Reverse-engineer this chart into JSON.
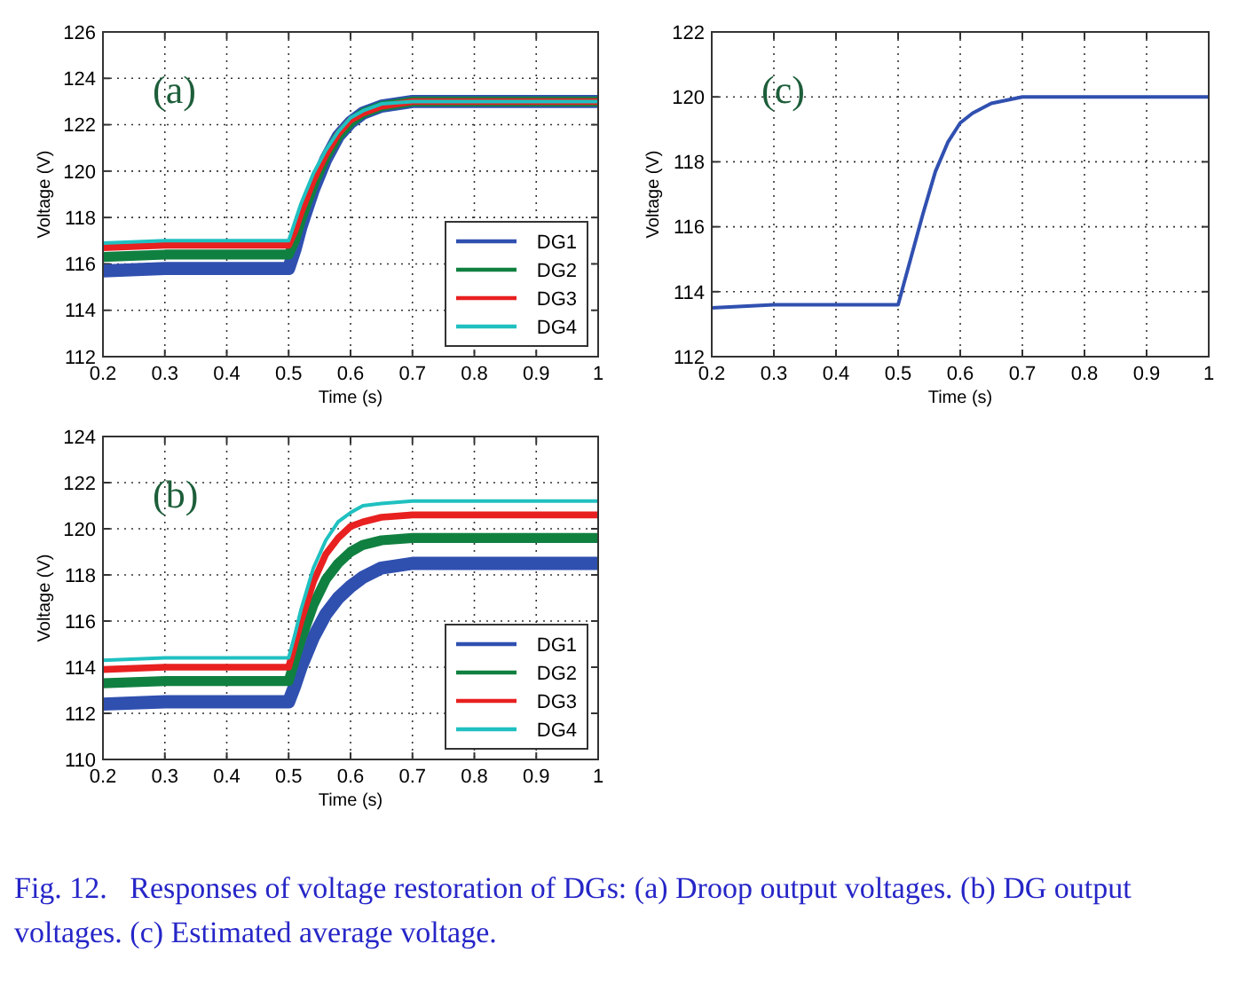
{
  "chart_data": [
    {
      "type": "line",
      "xlabel": "Time (s)",
      "ylabel": "Voltage (V)",
      "annotations": [
        "(a)",
        "Fig. 12.   Responses of voltage restoration of DGs: (a) Droop output voltages. (b) DG output voltages. (c) Estimated average voltage."
      ],
      "x": [
        0.2,
        0.3,
        0.4,
        0.5,
        0.51,
        0.52,
        0.54,
        0.56,
        0.58,
        0.6,
        0.62,
        0.65,
        0.7,
        0.8,
        0.9,
        1.0
      ],
      "xlim": [
        0.2,
        1
      ],
      "xticks": [
        0.2,
        0.3,
        0.4,
        0.5,
        0.6,
        0.7,
        0.8,
        0.9,
        1
      ],
      "ylim": [
        112,
        126
      ],
      "yticks": [
        112,
        114,
        116,
        118,
        120,
        122,
        124,
        126
      ],
      "grid": true,
      "legend": "bottom right",
      "series": [
        {
          "name": "DG1",
          "color": "#3050b0",
          "values": [
            115.7,
            115.8,
            115.8,
            115.8,
            116.6,
            117.6,
            119.2,
            120.5,
            121.5,
            122.1,
            122.5,
            122.8,
            123,
            123,
            123,
            123
          ]
        },
        {
          "name": "DG2",
          "color": "#108040",
          "values": [
            116.3,
            116.4,
            116.4,
            116.4,
            117.0,
            117.9,
            119.4,
            120.6,
            121.5,
            122.1,
            122.5,
            122.8,
            123,
            123,
            123,
            123
          ]
        },
        {
          "name": "DG3",
          "color": "#e82020",
          "values": [
            116.7,
            116.8,
            116.8,
            116.8,
            117.4,
            118.2,
            119.6,
            120.7,
            121.6,
            122.2,
            122.5,
            122.8,
            123,
            123,
            123,
            123
          ]
        },
        {
          "name": "DG4",
          "color": "#20c0c0",
          "values": [
            116.9,
            117.0,
            117.0,
            117.0,
            117.8,
            118.6,
            119.9,
            120.9,
            121.7,
            122.3,
            122.6,
            122.9,
            123,
            123,
            123,
            123
          ]
        }
      ]
    },
    {
      "type": "line",
      "xlabel": "Time (s)",
      "ylabel": "Voltage (V)",
      "annotations": [
        "(c)"
      ],
      "x": [
        0.2,
        0.3,
        0.4,
        0.5,
        0.51,
        0.52,
        0.54,
        0.56,
        0.58,
        0.6,
        0.62,
        0.65,
        0.7,
        0.8,
        0.9,
        1.0
      ],
      "xlim": [
        0.2,
        1
      ],
      "xticks": [
        0.2,
        0.3,
        0.4,
        0.5,
        0.6,
        0.7,
        0.8,
        0.9,
        1
      ],
      "ylim": [
        112,
        122
      ],
      "yticks": [
        112,
        114,
        116,
        118,
        120,
        122
      ],
      "grid": true,
      "series": [
        {
          "color": "#3050b0",
          "values": [
            113.5,
            113.6,
            113.6,
            113.6,
            114.3,
            115.0,
            116.4,
            117.7,
            118.6,
            119.2,
            119.5,
            119.8,
            120,
            120,
            120,
            120
          ]
        }
      ]
    },
    {
      "type": "line",
      "xlabel": "Time (s)",
      "ylabel": "Voltage (V)",
      "annotations": [
        "(b)"
      ],
      "x": [
        0.2,
        0.3,
        0.4,
        0.5,
        0.51,
        0.52,
        0.54,
        0.56,
        0.58,
        0.6,
        0.62,
        0.65,
        0.7,
        0.8,
        0.9,
        1.0
      ],
      "xlim": [
        0.2,
        1
      ],
      "xticks": [
        0.2,
        0.3,
        0.4,
        0.5,
        0.6,
        0.7,
        0.8,
        0.9,
        1
      ],
      "ylim": [
        110,
        124
      ],
      "yticks": [
        110,
        112,
        114,
        116,
        118,
        120,
        122,
        124
      ],
      "grid": true,
      "legend": "bottom right",
      "series": [
        {
          "name": "DG1",
          "color": "#3050b0",
          "values": [
            112.4,
            112.5,
            112.5,
            112.5,
            113.2,
            114.0,
            115.3,
            116.3,
            117.0,
            117.5,
            117.9,
            118.3,
            118.5,
            118.5,
            118.5,
            118.5
          ]
        },
        {
          "name": "DG2",
          "color": "#108040",
          "values": [
            113.3,
            113.4,
            113.4,
            113.4,
            114.3,
            115.2,
            116.7,
            117.8,
            118.5,
            119.0,
            119.3,
            119.5,
            119.6,
            119.6,
            119.6,
            119.6
          ]
        },
        {
          "name": "DG3",
          "color": "#e82020",
          "values": [
            113.9,
            114.0,
            114.0,
            114.0,
            115.0,
            116.0,
            117.7,
            118.9,
            119.6,
            120.1,
            120.3,
            120.5,
            120.6,
            120.6,
            120.6,
            120.6
          ]
        },
        {
          "name": "DG4",
          "color": "#20c0c0",
          "values": [
            114.3,
            114.4,
            114.4,
            114.4,
            115.4,
            116.5,
            118.3,
            119.5,
            120.3,
            120.7,
            121.0,
            121.1,
            121.2,
            121.2,
            121.2,
            121.2
          ]
        }
      ]
    }
  ]
}
